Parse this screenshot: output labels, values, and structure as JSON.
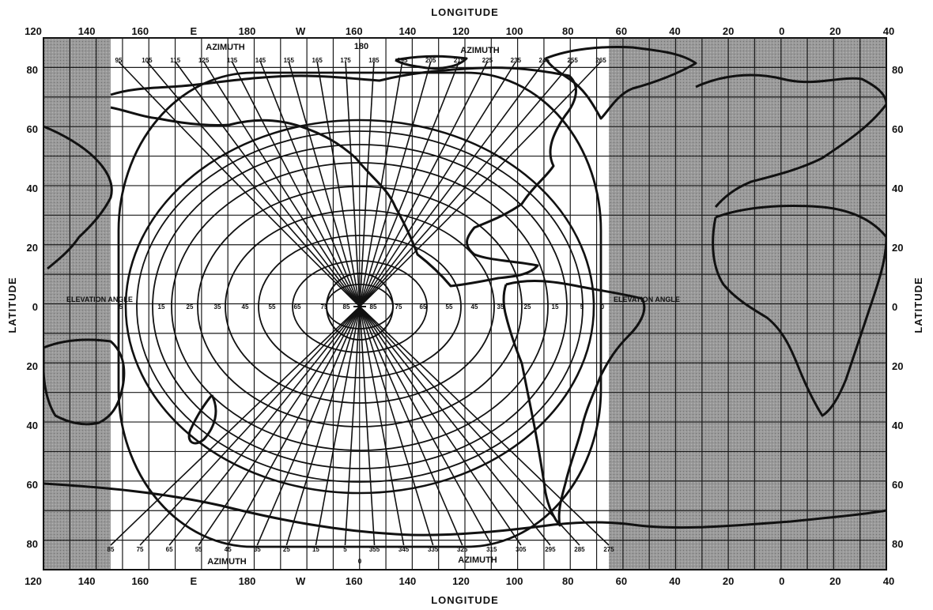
{
  "axes": {
    "top_title": "LONGITUDE",
    "bottom_title": "LONGITUDE",
    "left_title": "LATITUDE",
    "right_title": "LATITUDE",
    "longitude_ticks": [
      "120",
      "140",
      "160",
      "E",
      "180",
      "W",
      "160",
      "140",
      "120",
      "100",
      "80",
      "60",
      "40",
      "20",
      "0",
      "20",
      "40"
    ],
    "latitude_ticks_left": [
      "80",
      "60",
      "40",
      "20",
      "0",
      "20",
      "40",
      "60",
      "80"
    ],
    "latitude_ticks_right": [
      "80",
      "60",
      "40",
      "20",
      "0",
      "20",
      "40",
      "60",
      "80"
    ]
  },
  "overlay": {
    "azimuth_top_label_left": "AZIMUTH",
    "azimuth_top_label_right": "AZIMUTH",
    "azimuth_bottom_label_left": "AZIMUTH",
    "azimuth_bottom_label_right": "AZIMUTH",
    "center_azimuth": "180",
    "center_azimuth_bottom": "0",
    "azimuth_top": [
      "95",
      "105",
      "115",
      "125",
      "135",
      "145",
      "155",
      "165",
      "175",
      "185",
      "195",
      "205",
      "215",
      "225",
      "235",
      "245",
      "255",
      "265"
    ],
    "azimuth_bottom": [
      "85",
      "75",
      "65",
      "55",
      "45",
      "35",
      "25",
      "15",
      "5",
      "355",
      "345",
      "335",
      "325",
      "315",
      "305",
      "295",
      "285",
      "275"
    ],
    "elevation_left": [
      "5",
      "15",
      "25",
      "35",
      "45",
      "55",
      "65",
      "75",
      "85"
    ],
    "elevation_right": [
      "85",
      "75",
      "65",
      "55",
      "45",
      "35",
      "25",
      "15",
      "5",
      "0"
    ],
    "elevation_note_left": "ELEVATION ANGLE",
    "elevation_note_right": "ELEVATION ANGLE"
  },
  "colors": {
    "shaded_region": "#8f8f8f",
    "grid_line": "#1a1a1a",
    "coast_line": "#111111",
    "background": "#ffffff"
  }
}
